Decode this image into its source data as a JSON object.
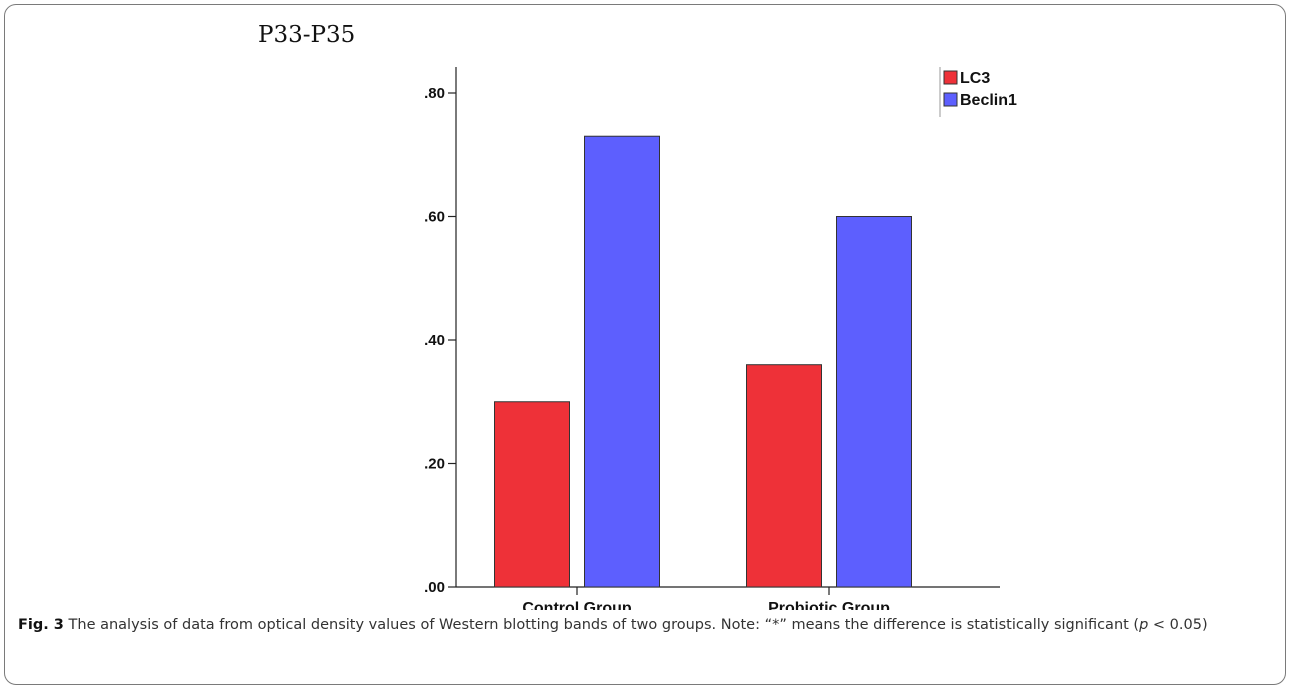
{
  "panel_title": "P33-P35",
  "caption": {
    "fig_label": "Fig. 3",
    "text_before": " The analysis of data from optical density values of Western blotting bands of two groups. Note: “*” means the difference is statistically significant (",
    "p_var": "p",
    "text_after": " < 0.05)"
  },
  "colors": {
    "LC3": "#ee3138",
    "Beclin1": "#5d5ffe"
  },
  "chart_data": {
    "type": "bar",
    "categories": [
      "Control Group",
      "Probiotic Group"
    ],
    "series": [
      {
        "name": "LC3",
        "values": [
          0.3,
          0.36
        ]
      },
      {
        "name": "Beclin1",
        "values": [
          0.73,
          0.6
        ]
      }
    ],
    "ylim": [
      0,
      0.8
    ],
    "yticks": [
      0.0,
      0.2,
      0.4,
      0.6,
      0.8
    ],
    "ytick_labels": [
      ".00",
      ".20",
      ".40",
      ".60",
      ".80"
    ],
    "legend": "top-right",
    "grid": false
  }
}
